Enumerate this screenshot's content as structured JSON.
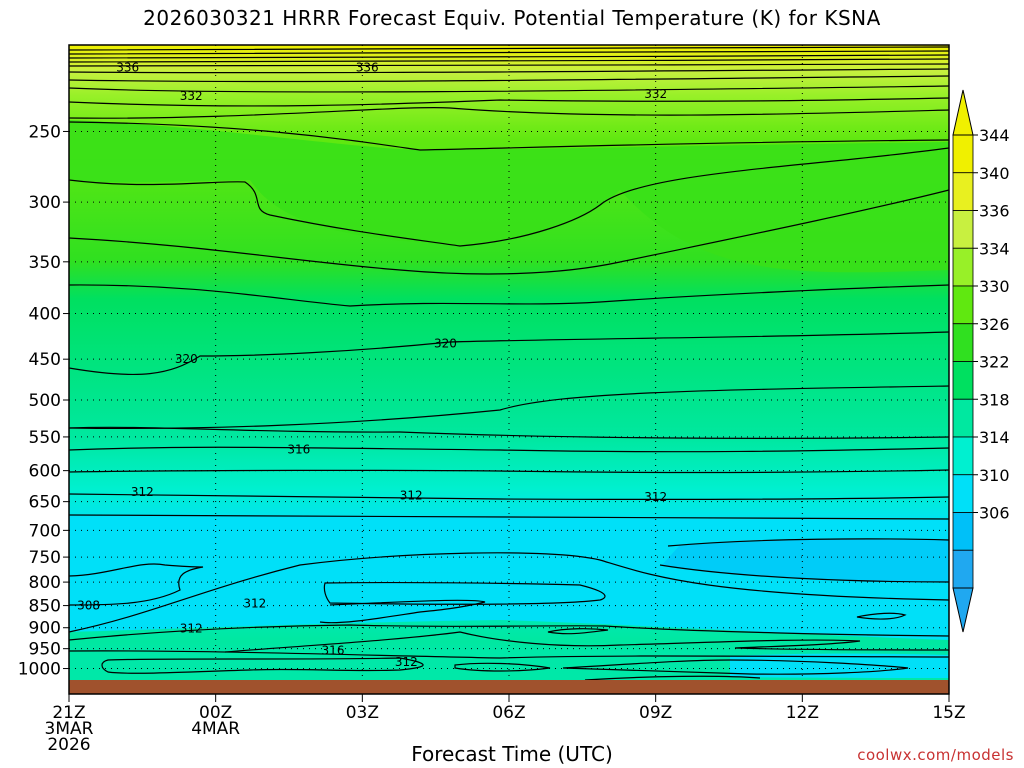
{
  "chart_data": {
    "type": "contour",
    "title": "2026030321 HRRR Forecast Equiv. Potential Temperature (K) for KSNA",
    "xlabel": "Forecast Time (UTC)",
    "ylabel": "",
    "x_ticks": [
      {
        "line1": "21Z",
        "line2": "3MAR",
        "line3": "2026"
      },
      {
        "line1": "00Z",
        "line2": "4MAR",
        "line3": ""
      },
      {
        "line1": "03Z",
        "line2": "",
        "line3": ""
      },
      {
        "line1": "06Z",
        "line2": "",
        "line3": ""
      },
      {
        "line1": "09Z",
        "line2": "",
        "line3": ""
      },
      {
        "line1": "12Z",
        "line2": "",
        "line3": ""
      },
      {
        "line1": "15Z",
        "line2": "",
        "line3": ""
      }
    ],
    "xlim_hours": [
      0,
      18
    ],
    "y_ticks": [
      250,
      300,
      350,
      400,
      450,
      500,
      550,
      600,
      650,
      700,
      750,
      800,
      850,
      900,
      950,
      1000
    ],
    "y_scale": "log",
    "ylim_hPa": [
      1030,
      200
    ],
    "colorbar": {
      "labels": [
        344,
        340,
        336,
        334,
        330,
        326,
        322,
        318,
        314,
        310,
        306
      ],
      "colors": [
        "#f0f000",
        "#e8f020",
        "#c8f040",
        "#98f028",
        "#60e810",
        "#30e020",
        "#00e060",
        "#00e8a0",
        "#00f0d0",
        "#00e0f8",
        "#00c0f8",
        "#20a8f0"
      ]
    },
    "contour_labels": [
      {
        "text": "336",
        "hour": 1.2,
        "p": 212
      },
      {
        "text": "336",
        "hour": 6.1,
        "p": 212
      },
      {
        "text": "332",
        "hour": 2.5,
        "p": 228
      },
      {
        "text": "332",
        "hour": 12.0,
        "p": 227
      },
      {
        "text": "320",
        "hour": 2.4,
        "p": 450
      },
      {
        "text": "320",
        "hour": 7.7,
        "p": 432
      },
      {
        "text": "316",
        "hour": 4.7,
        "p": 568
      },
      {
        "text": "312",
        "hour": 1.5,
        "p": 634
      },
      {
        "text": "312",
        "hour": 7.0,
        "p": 640
      },
      {
        "text": "312",
        "hour": 12.0,
        "p": 642
      },
      {
        "text": "308",
        "hour": 0.4,
        "p": 850
      },
      {
        "text": "312",
        "hour": 3.8,
        "p": 845
      },
      {
        "text": "312",
        "hour": 2.5,
        "p": 902
      },
      {
        "text": "316",
        "hour": 5.4,
        "p": 955
      },
      {
        "text": "312",
        "hour": 6.9,
        "p": 983
      }
    ]
  },
  "credit": "coolwx.com/models"
}
